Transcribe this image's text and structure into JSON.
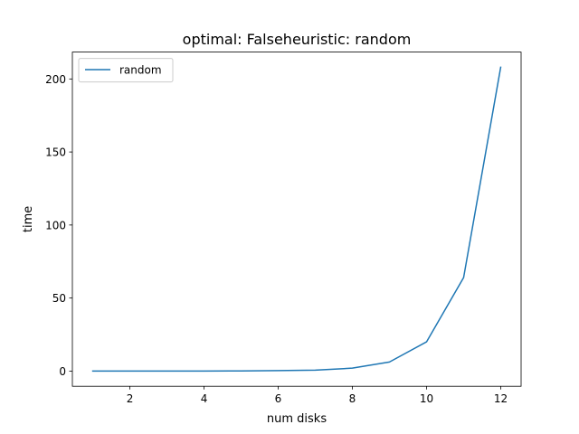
{
  "chart_data": {
    "type": "line",
    "title": "optimal: Falseheuristic: random",
    "xlabel": "num disks",
    "ylabel": "time",
    "x": [
      1,
      2,
      3,
      4,
      5,
      6,
      7,
      8,
      9,
      10,
      11,
      12
    ],
    "series": [
      {
        "name": "random",
        "color": "#1f77b4",
        "values": [
          0.05,
          0.05,
          0.05,
          0.05,
          0.1,
          0.3,
          0.6,
          2.0,
          6.2,
          20.0,
          64.0,
          208.0
        ]
      }
    ],
    "xlim": [
      0.45,
      12.55
    ],
    "ylim": [
      -10.4,
      218.4
    ],
    "xticks": [
      2,
      4,
      6,
      8,
      10,
      12
    ],
    "yticks": [
      0,
      50,
      100,
      150,
      200
    ],
    "grid": false,
    "legend_position": "top-left"
  }
}
